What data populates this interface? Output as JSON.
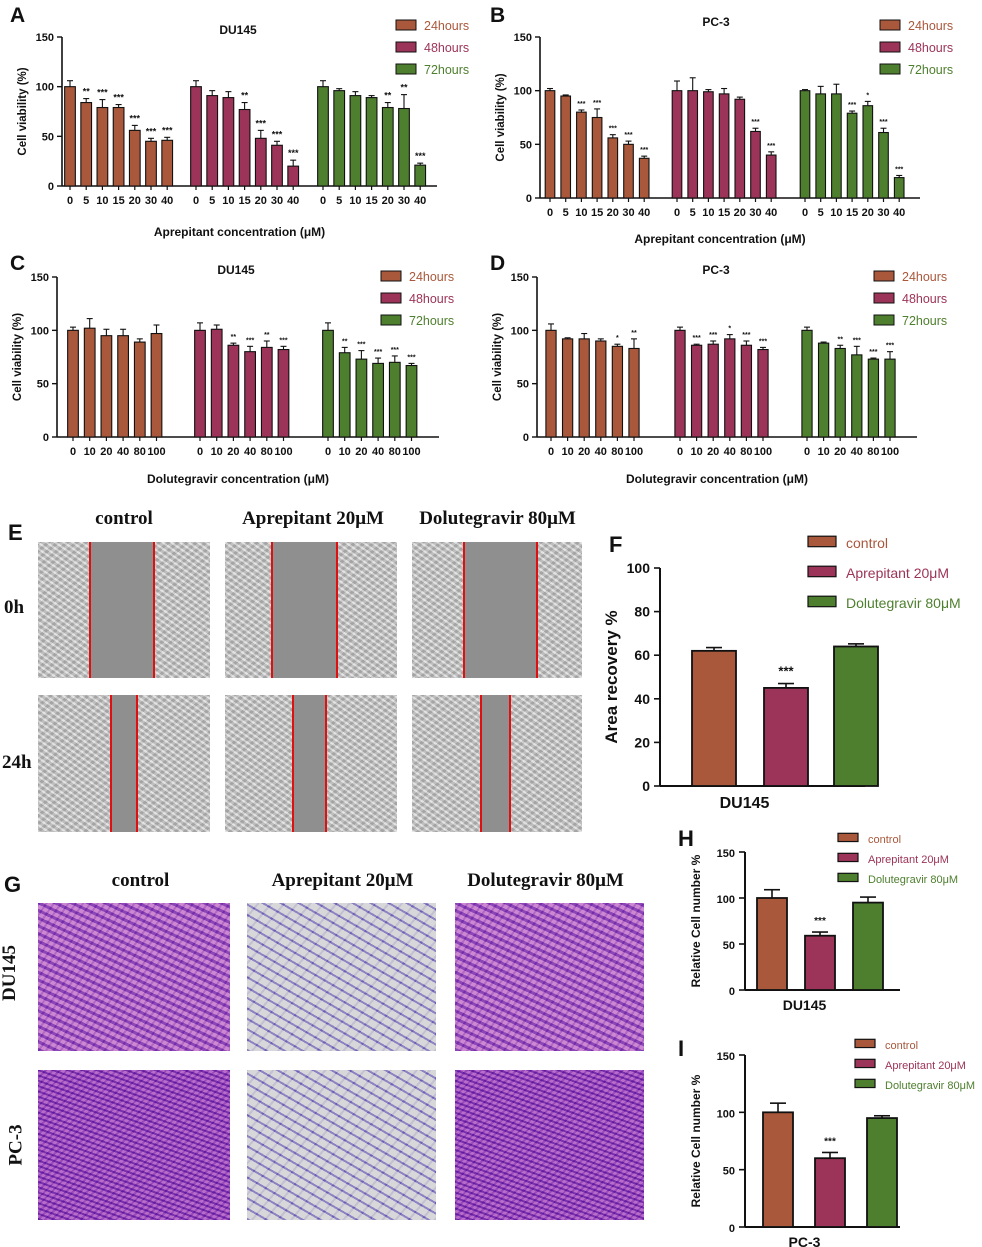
{
  "colors": {
    "h24": "#a9583b",
    "h48": "#9c3358",
    "h72": "#4e7f2e",
    "c_control": "#a9583b",
    "c_aprep": "#9c3358",
    "c_dolu": "#4e7f2e"
  },
  "chart_data": [
    {
      "id": "A",
      "type": "bar",
      "title": "DU145",
      "xlabel": "Aprepitant concentration (μM)",
      "ylabel": "Cell viability (%)",
      "ylim": [
        0,
        150
      ],
      "yticks": [
        "0",
        "50",
        "100",
        "150"
      ],
      "categories": [
        "0",
        "5",
        "10",
        "15",
        "20",
        "30",
        "40"
      ],
      "series": [
        {
          "name": "24hours",
          "values": [
            100,
            84,
            79,
            79,
            56,
            45,
            46
          ],
          "errors": [
            6,
            4,
            8,
            3,
            5,
            3,
            3
          ],
          "sig": [
            "",
            "**",
            "***",
            "***",
            "***",
            "***",
            "***"
          ]
        },
        {
          "name": "48hours",
          "values": [
            100,
            91,
            89,
            77,
            48,
            41,
            20
          ],
          "errors": [
            6,
            5,
            6,
            7,
            8,
            4,
            6
          ],
          "sig": [
            "",
            "",
            "",
            "**",
            "***",
            "***",
            "***"
          ]
        },
        {
          "name": "72hours",
          "values": [
            100,
            96,
            91,
            89,
            79,
            78,
            21
          ],
          "errors": [
            6,
            2,
            4,
            2,
            5,
            14,
            2
          ],
          "sig": [
            "",
            "",
            "",
            "",
            "**",
            "**",
            "***"
          ]
        }
      ]
    },
    {
      "id": "B",
      "type": "bar",
      "title": "PC-3",
      "xlabel": "Aprepitant concentration (μM)",
      "ylabel": "Cell viability (%)",
      "ylim": [
        0,
        150
      ],
      "yticks": [
        "0",
        "50",
        "100",
        "150"
      ],
      "categories": [
        "0",
        "5",
        "10",
        "15",
        "20",
        "30",
        "40"
      ],
      "series": [
        {
          "name": "24hours",
          "values": [
            100,
            95,
            80,
            75,
            56,
            50,
            37
          ],
          "errors": [
            2,
            1,
            2,
            8,
            3,
            3,
            2
          ],
          "sig": [
            "",
            "",
            "***",
            "***",
            "***",
            "***",
            "***"
          ]
        },
        {
          "name": "48hours",
          "values": [
            100,
            100,
            99,
            97,
            92,
            62,
            40
          ],
          "errors": [
            9,
            12,
            2,
            5,
            2,
            3,
            3
          ],
          "sig": [
            "",
            "",
            "",
            "",
            "",
            "***",
            "***"
          ]
        },
        {
          "name": "72hours",
          "values": [
            100,
            97,
            97,
            79,
            86,
            61,
            19
          ],
          "errors": [
            1,
            7,
            9,
            2,
            4,
            4,
            2
          ],
          "sig": [
            "",
            "",
            "",
            "***",
            "*",
            "***",
            "***"
          ]
        }
      ]
    },
    {
      "id": "C",
      "type": "bar",
      "title": "DU145",
      "xlabel": "Dolutegravir concentration (μM)",
      "ylabel": "Cell viability (%)",
      "ylim": [
        0,
        150
      ],
      "yticks": [
        "0",
        "50",
        "100",
        "150"
      ],
      "categories": [
        "0",
        "10",
        "20",
        "40",
        "80",
        "100"
      ],
      "series": [
        {
          "name": "24hours",
          "values": [
            100,
            102,
            95,
            95,
            89,
            97
          ],
          "errors": [
            3,
            9,
            6,
            6,
            3,
            8
          ],
          "sig": [
            "",
            "",
            "",
            "",
            "",
            ""
          ]
        },
        {
          "name": "48hours",
          "values": [
            100,
            101,
            86,
            80,
            84,
            82
          ],
          "errors": [
            7,
            4,
            2,
            5,
            6,
            3
          ],
          "sig": [
            "",
            "",
            "**",
            "***",
            "**",
            "***"
          ]
        },
        {
          "name": "72hours",
          "values": [
            100,
            79,
            73,
            69,
            70,
            67
          ],
          "errors": [
            7,
            5,
            8,
            5,
            6,
            2
          ],
          "sig": [
            "",
            "**",
            "***",
            "***",
            "***",
            "***"
          ]
        }
      ]
    },
    {
      "id": "D",
      "type": "bar",
      "title": "PC-3",
      "xlabel": "Dolutegravir concentration (μM)",
      "ylabel": "Cell viability (%)",
      "ylim": [
        0,
        150
      ],
      "yticks": [
        "0",
        "50",
        "100",
        "150"
      ],
      "categories": [
        "0",
        "10",
        "20",
        "40",
        "80",
        "100"
      ],
      "series": [
        {
          "name": "24hours",
          "values": [
            100,
            92,
            92,
            90,
            85,
            83
          ],
          "errors": [
            6,
            1,
            5,
            2,
            2,
            9
          ],
          "sig": [
            "",
            "",
            "",
            "",
            "*",
            "**"
          ]
        },
        {
          "name": "48hours",
          "values": [
            100,
            86,
            87,
            92,
            86,
            82
          ],
          "errors": [
            3,
            1,
            3,
            4,
            4,
            2
          ],
          "sig": [
            "",
            "***",
            "***",
            "*",
            "***",
            "***"
          ]
        },
        {
          "name": "72hours",
          "values": [
            100,
            88,
            83,
            77,
            73,
            73
          ],
          "errors": [
            3,
            1,
            3,
            8,
            1,
            7
          ],
          "sig": [
            "",
            "",
            "**",
            "***",
            "***",
            "***"
          ]
        }
      ]
    },
    {
      "id": "F",
      "type": "bar",
      "title": "",
      "xlabel": "DU145",
      "ylabel": "Area recovery %",
      "ylim": [
        0,
        100
      ],
      "yticks": [
        "0",
        "20",
        "40",
        "60",
        "80",
        "100"
      ],
      "categories": [
        "control",
        "Aprepitant 20μM",
        "Dolutegravir 80μM"
      ],
      "values": [
        62,
        45,
        64
      ],
      "errors": [
        1.5,
        2,
        1.2
      ],
      "sig": [
        "",
        "***",
        ""
      ]
    },
    {
      "id": "H",
      "type": "bar",
      "title": "",
      "xlabel": "DU145",
      "ylabel": "Relative Cell number %",
      "ylim": [
        0,
        150
      ],
      "yticks": [
        "0",
        "50",
        "100",
        "150"
      ],
      "categories": [
        "control",
        "Aprepitant 20μM",
        "Dolutegravir 80μM"
      ],
      "values": [
        100,
        59,
        95
      ],
      "errors": [
        9,
        4,
        6
      ],
      "sig": [
        "",
        "***",
        ""
      ]
    },
    {
      "id": "I",
      "type": "bar",
      "title": "",
      "xlabel": "PC-3",
      "ylabel": "Relative Cell number %",
      "ylim": [
        0,
        150
      ],
      "yticks": [
        "0",
        "50",
        "100",
        "150"
      ],
      "categories": [
        "control",
        "Aprepitant 20μM",
        "Dolutegravir 80μM"
      ],
      "values": [
        100,
        60,
        95
      ],
      "errors": [
        8,
        5,
        2
      ],
      "sig": [
        "",
        "***",
        ""
      ]
    }
  ],
  "panels": {
    "e": "E",
    "f": "F",
    "g": "G",
    "h": "H",
    "i": "I"
  },
  "wound": {
    "cols": [
      "control",
      "Aprepitant 20μM",
      "Dolutegravir 80μM"
    ],
    "rows": [
      "0h",
      "24h"
    ]
  },
  "transwell": {
    "cols": [
      "control",
      "Aprepitant 20μM",
      "Dolutegravir 80μM"
    ],
    "rows": [
      "DU145",
      "PC-3"
    ]
  }
}
